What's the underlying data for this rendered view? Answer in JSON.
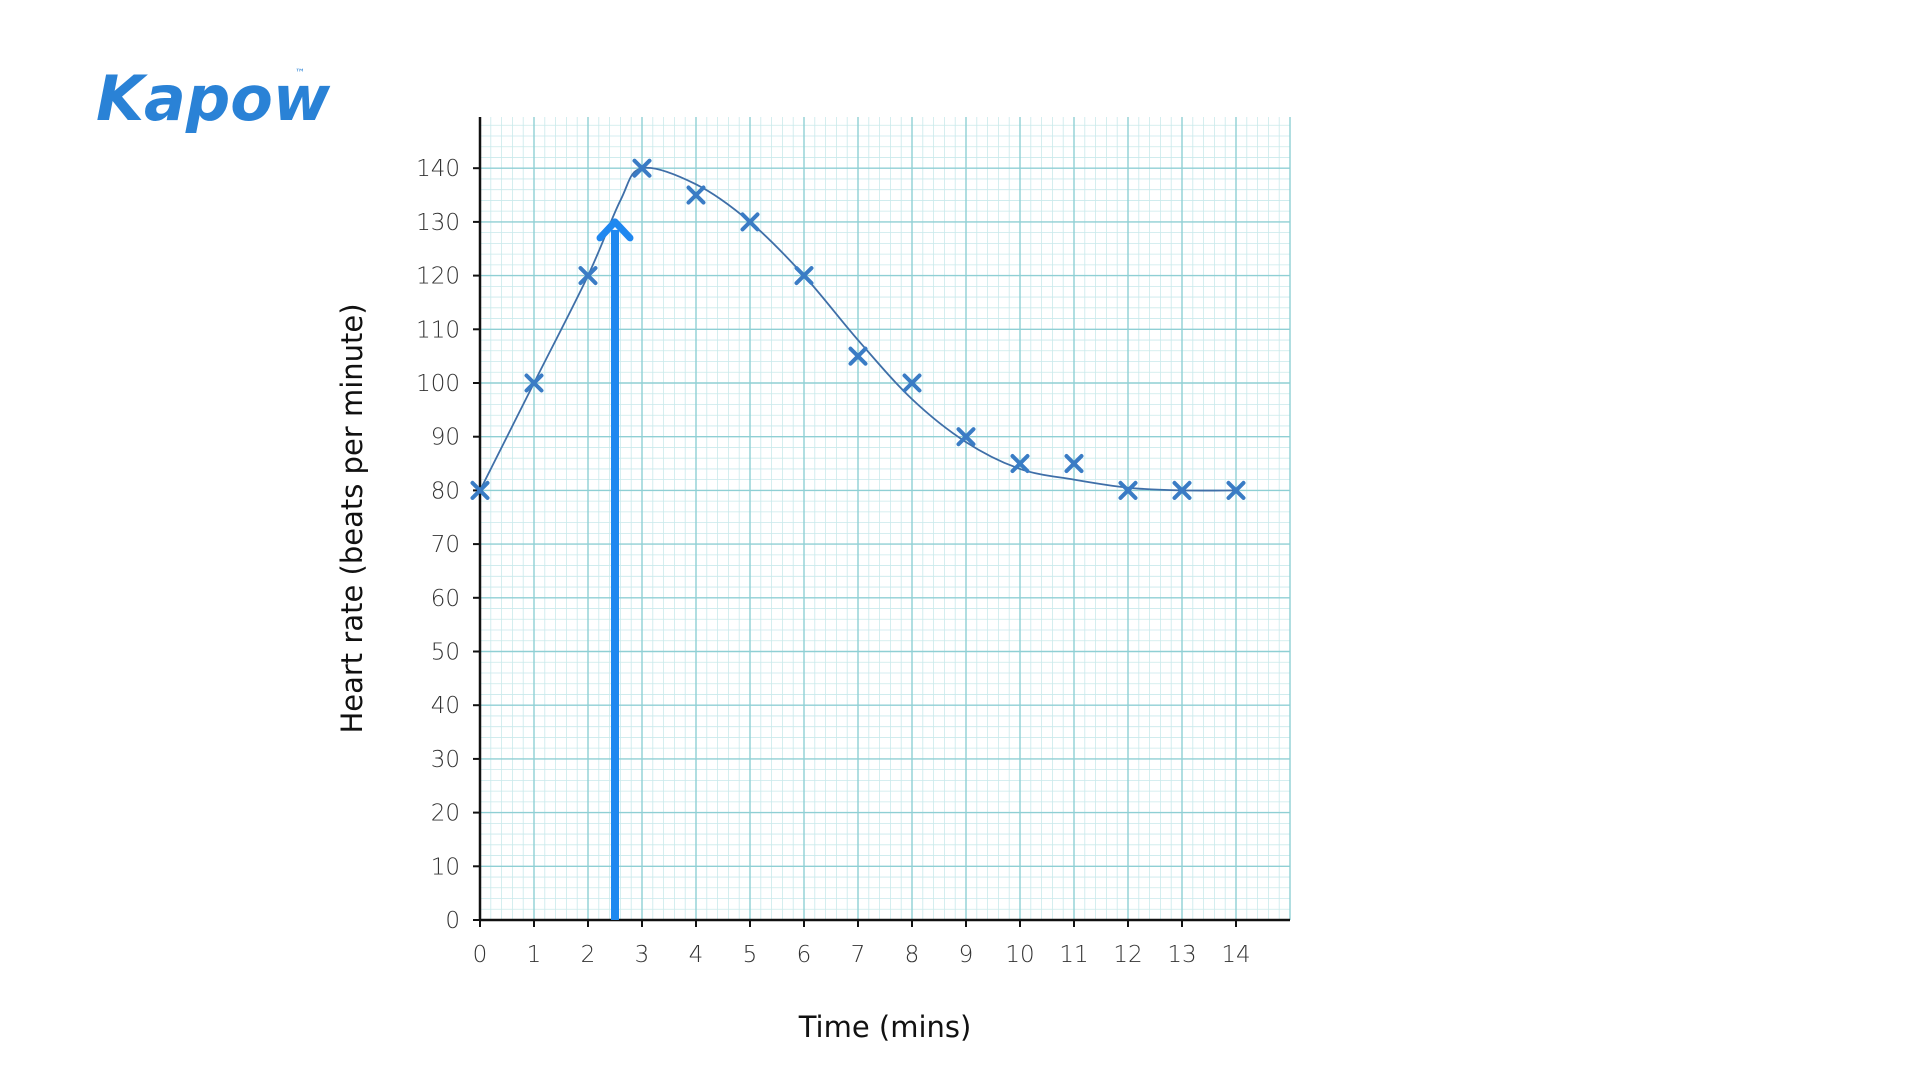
{
  "brand": {
    "logo_text": "Kapow",
    "trademark": "™",
    "color": "#2a82d6"
  },
  "chart_data": {
    "type": "scatter",
    "title": "",
    "xlabel": "Time (mins)",
    "ylabel": "Heart rate (beats per minute)",
    "xlim": [
      0,
      15
    ],
    "ylim": [
      0,
      150
    ],
    "x_ticks": [
      0,
      1,
      2,
      3,
      4,
      5,
      6,
      7,
      8,
      9,
      10,
      11,
      12,
      13,
      14
    ],
    "y_ticks": [
      0,
      10,
      20,
      30,
      40,
      50,
      60,
      70,
      80,
      90,
      100,
      110,
      120,
      130,
      140
    ],
    "grid": true,
    "grid_style": "graph paper (major every 1 unit / 10 bpm, 5 minor subdivisions)",
    "series": [
      {
        "marker": "x",
        "smooth_curve_of_best_fit": true,
        "points": [
          {
            "x": 0,
            "y": 80
          },
          {
            "x": 1,
            "y": 100
          },
          {
            "x": 2,
            "y": 120
          },
          {
            "x": 3,
            "y": 140
          },
          {
            "x": 4,
            "y": 135
          },
          {
            "x": 5,
            "y": 130
          },
          {
            "x": 6,
            "y": 120
          },
          {
            "x": 7,
            "y": 105
          },
          {
            "x": 8,
            "y": 100
          },
          {
            "x": 9,
            "y": 90
          },
          {
            "x": 10,
            "y": 85
          },
          {
            "x": 11,
            "y": 85
          },
          {
            "x": 12,
            "y": 80
          },
          {
            "x": 13,
            "y": 80
          },
          {
            "x": 14,
            "y": 80
          }
        ]
      }
    ],
    "curve_of_best_fit": [
      {
        "x": 0,
        "y": 80
      },
      {
        "x": 1,
        "y": 100
      },
      {
        "x": 2,
        "y": 120
      },
      {
        "x": 2.6,
        "y": 134
      },
      {
        "x": 3,
        "y": 140
      },
      {
        "x": 4,
        "y": 137
      },
      {
        "x": 5,
        "y": 130
      },
      {
        "x": 6,
        "y": 120
      },
      {
        "x": 7,
        "y": 108
      },
      {
        "x": 8,
        "y": 97
      },
      {
        "x": 9,
        "y": 89
      },
      {
        "x": 10,
        "y": 84
      },
      {
        "x": 11,
        "y": 82
      },
      {
        "x": 12,
        "y": 80.5
      },
      {
        "x": 13,
        "y": 80
      },
      {
        "x": 14,
        "y": 80
      }
    ],
    "annotation_arrow": {
      "x": 2.5,
      "from_y": 0,
      "to_y": 130
    },
    "colors": {
      "grid_major": "#8fcfd4",
      "grid_minor": "#c9e9eb",
      "marker": "#3a7cc5",
      "curve": "#3f6fa8",
      "arrow": "#1f88f0",
      "axis": "#111111"
    }
  }
}
